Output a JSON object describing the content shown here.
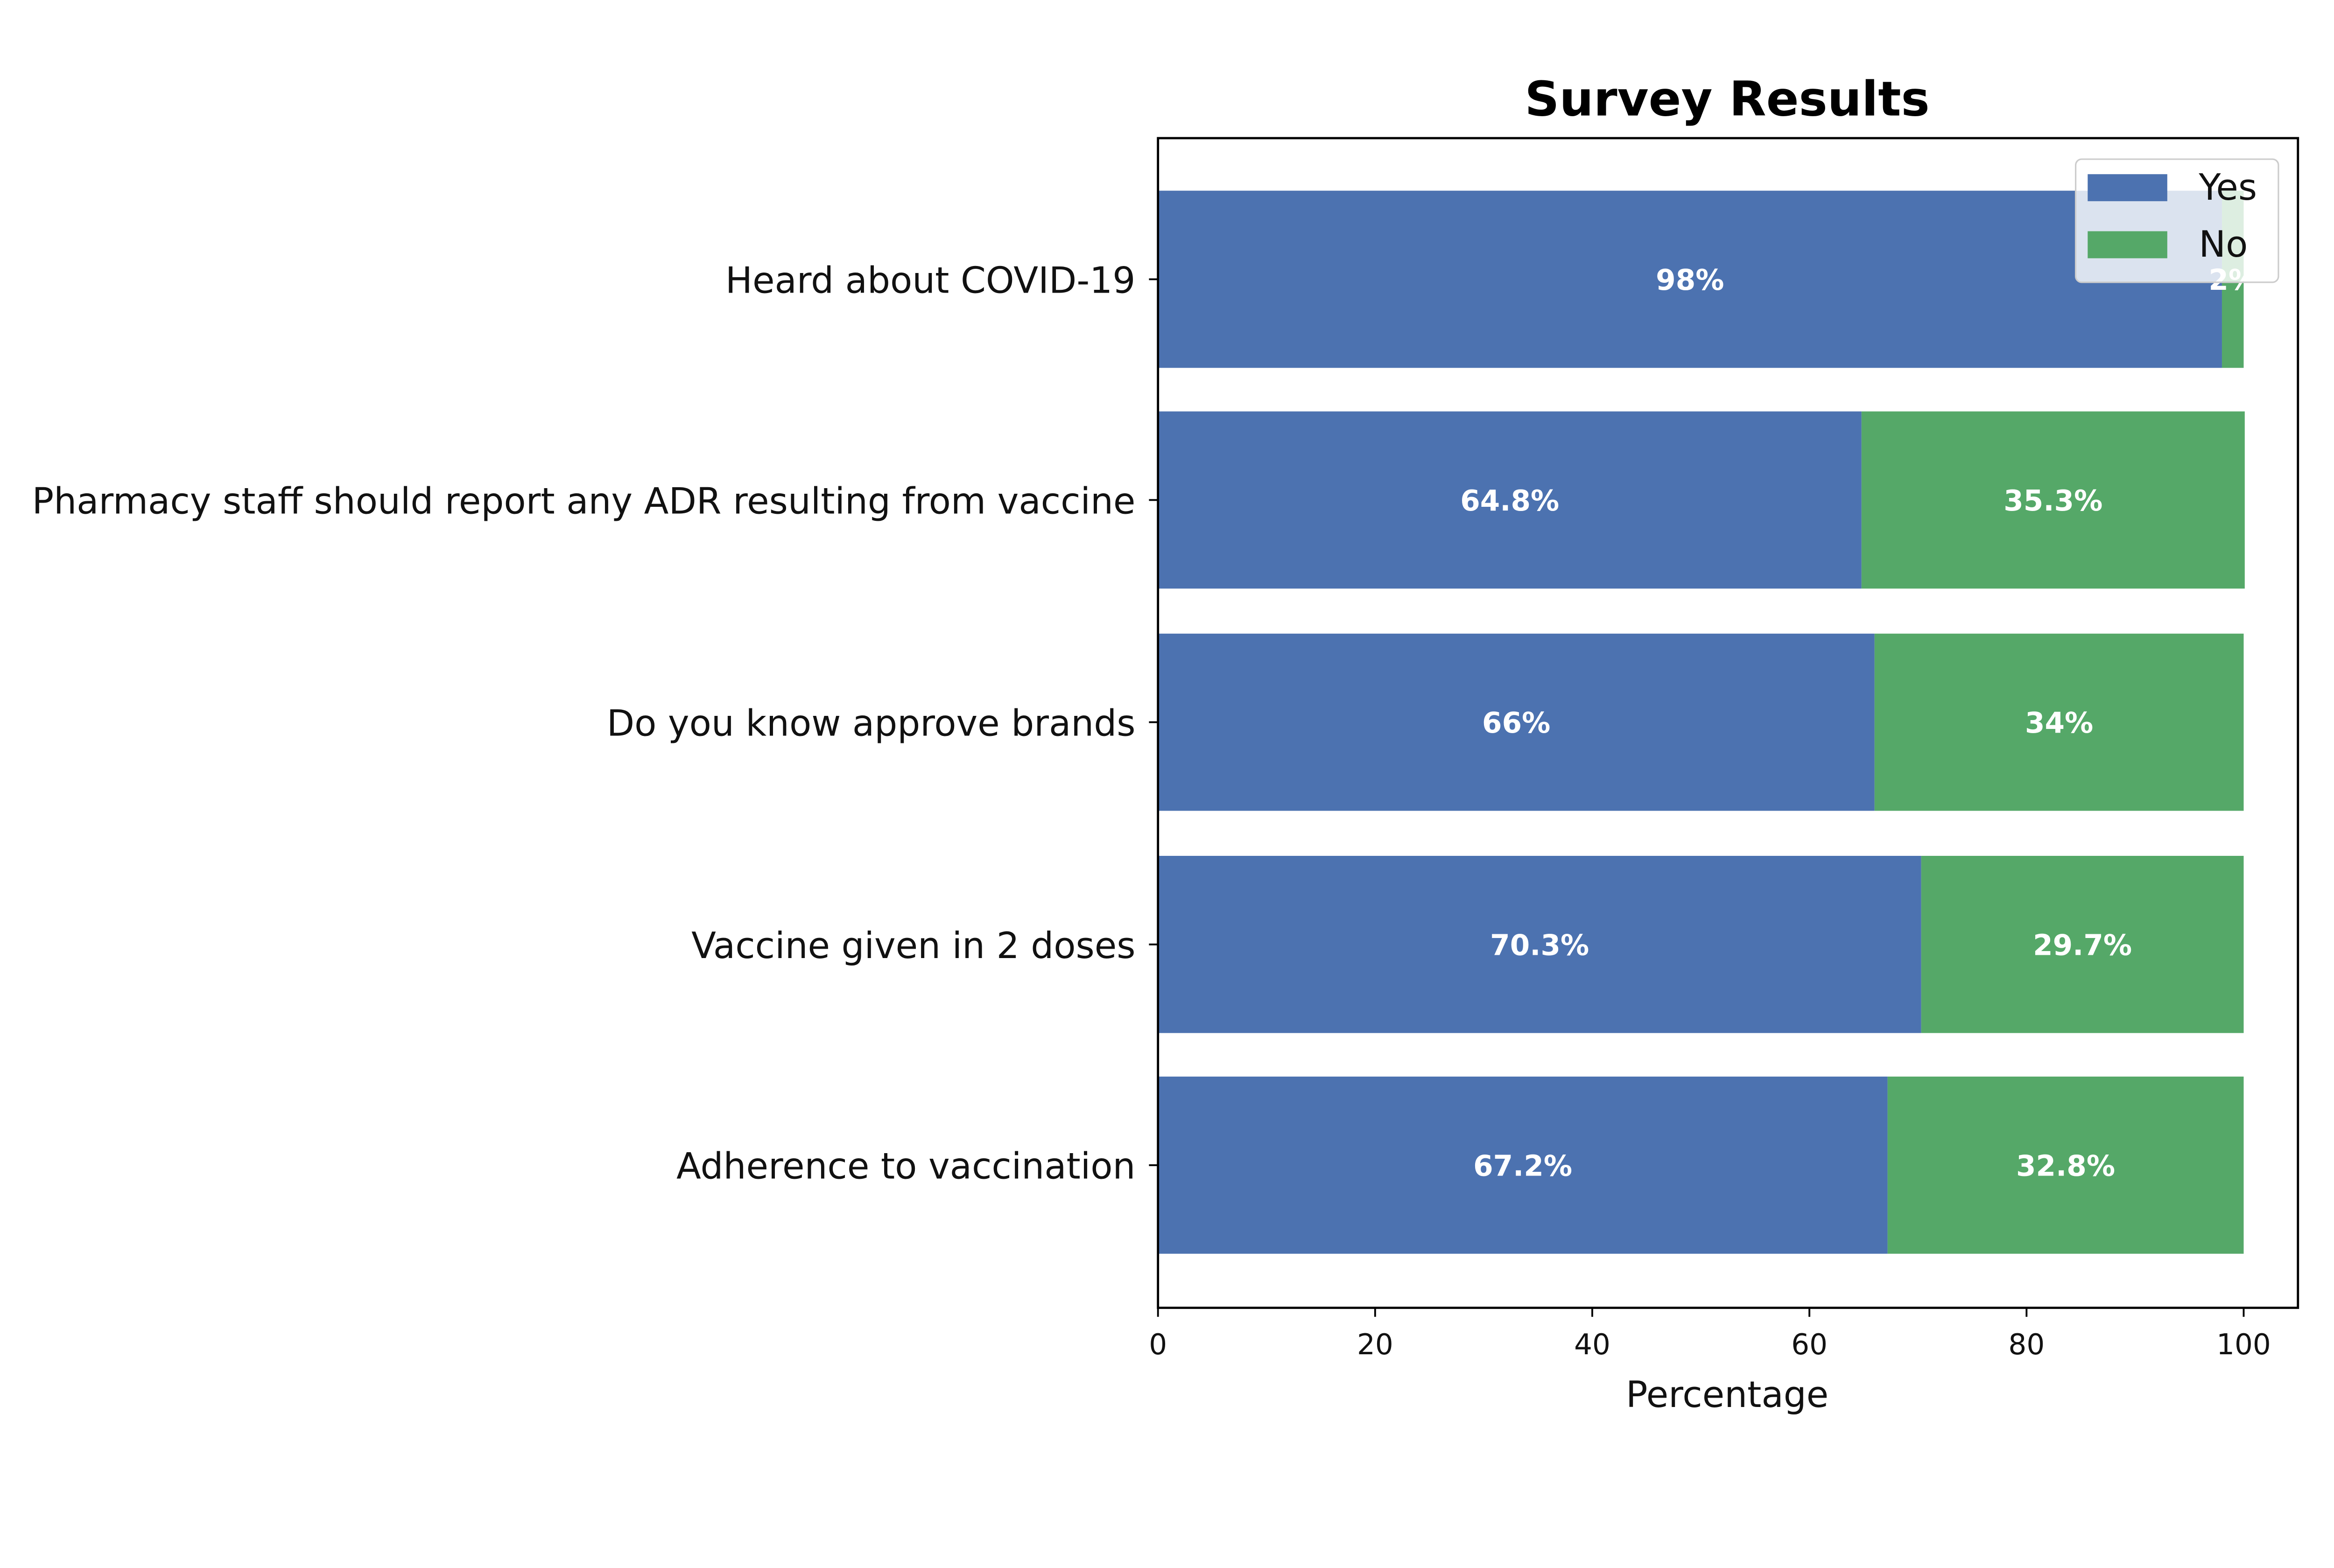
{
  "chart_data": {
    "type": "bar",
    "orientation": "horizontal",
    "stacked": true,
    "title": "Survey Results",
    "xlabel": "Percentage",
    "ylabel": "",
    "xlim": [
      0,
      105
    ],
    "xticks": [
      0,
      20,
      40,
      60,
      80,
      100
    ],
    "grid": false,
    "legend_position": "top-right",
    "categories": [
      "Heard about COVID-19",
      "Pharmacy staff should report any ADR resulting from vaccine",
      "Do you know approve brands",
      "Vaccine given in 2 doses",
      "Adherence to vaccination"
    ],
    "series": [
      {
        "name": "Yes",
        "color": "#4c72b0",
        "values": [
          98,
          64.8,
          66,
          70.3,
          67.2
        ],
        "labels": [
          "98%",
          "64.8%",
          "66%",
          "70.3%",
          "67.2%"
        ]
      },
      {
        "name": "No",
        "color": "#55a868",
        "values": [
          2,
          35.3,
          34,
          29.7,
          32.8
        ],
        "labels": [
          "2%",
          "35.3%",
          "34%",
          "29.7%",
          "32.8%"
        ]
      }
    ]
  }
}
